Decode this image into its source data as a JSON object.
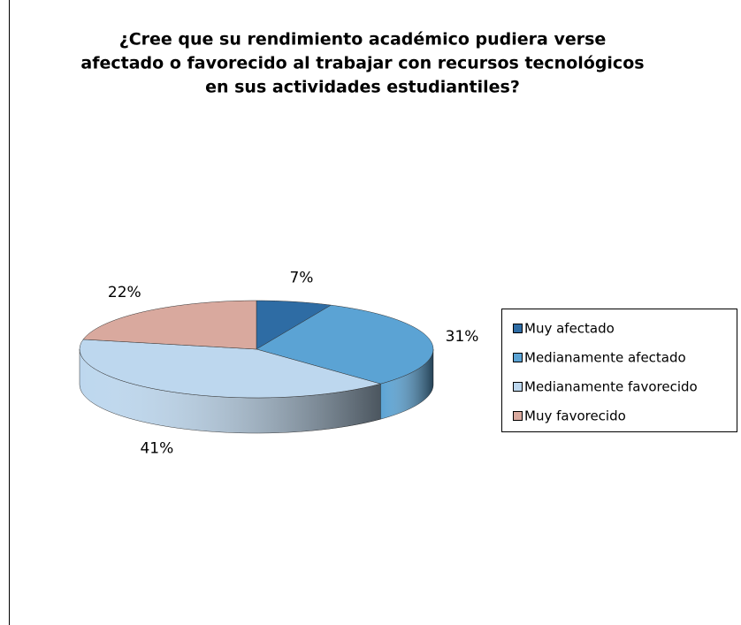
{
  "chart_data": {
    "type": "pie3d",
    "title": [
      "¿Cree que su rendimiento académico pudiera verse",
      "afectado o favorecido al trabajar con recursos tecnológicos",
      "en sus actividades estudiantiles?"
    ],
    "categories": [
      "Muy afectado",
      "Medianamente afectado",
      "Medianamente favorecido",
      "Muy favorecido"
    ],
    "values": [
      7,
      31,
      41,
      22
    ],
    "value_labels": [
      "7%",
      "31%",
      "41%",
      "22%"
    ],
    "colors": [
      "#2e6ca4",
      "#5ba3d4",
      "#bdd7ee",
      "#d9a99e"
    ],
    "legend": "right"
  }
}
